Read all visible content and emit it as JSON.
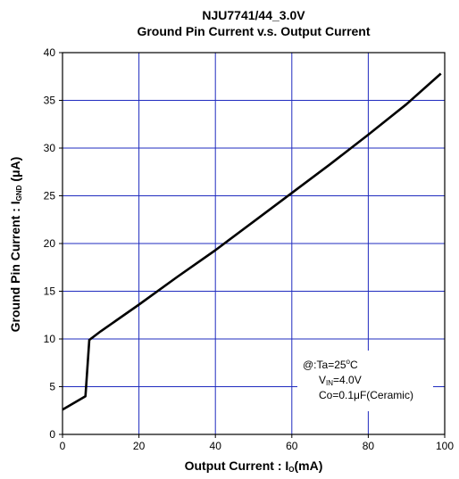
{
  "chart_data": {
    "type": "line",
    "title": "NJU7741/44_3.0V",
    "subtitle": "Ground Pin Current v.s. Output Current",
    "xlabel": "Output Current : Io(mA)",
    "xlabel_parts": {
      "pre": "Output Current : I",
      "sub": "O",
      "post": "(mA)"
    },
    "ylabel": "Ground Pin Current : IGND (μA)",
    "ylabel_parts": {
      "pre": "Ground Pin Current : I",
      "sub": "GND",
      "post": " (μA)"
    },
    "xlim": [
      0,
      100
    ],
    "ylim": [
      0,
      40
    ],
    "x_ticks": [
      0,
      20,
      40,
      60,
      80,
      100
    ],
    "y_ticks": [
      0,
      5,
      10,
      15,
      20,
      25,
      30,
      35,
      40
    ],
    "grid": true,
    "line_color": "#000000",
    "grid_color": "#1f2bbf",
    "series": [
      {
        "x": [
          0,
          6,
          7,
          10,
          20,
          30,
          40,
          50,
          60,
          70,
          80,
          90,
          99
        ],
        "y": [
          2.6,
          4.0,
          9.9,
          10.8,
          13.6,
          16.5,
          19.3,
          22.3,
          25.3,
          28.3,
          31.4,
          34.6,
          37.8
        ]
      }
    ],
    "annotation": {
      "line1": {
        "pre": "@:Ta=25",
        "sup": "o",
        "post": "C"
      },
      "line2": {
        "pre": "V",
        "sub": "IN",
        "post": "=4.0V"
      },
      "line3": {
        "text": "Co=0.1μF(Ceramic)"
      }
    }
  }
}
